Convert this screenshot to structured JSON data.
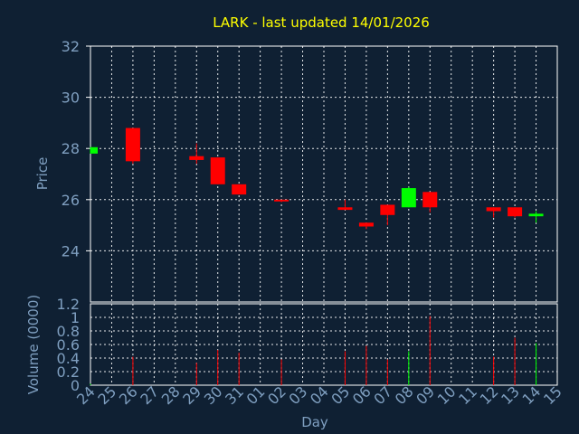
{
  "title": "LARK - last updated 14/01/2026",
  "colors": {
    "background": "#0f2033",
    "title": "#ffff00",
    "axis_text": "#7f9fc0",
    "grid": "#ffffff",
    "up": "#00ff00",
    "down": "#ff0000"
  },
  "chart_data": [
    {
      "type": "candlestick",
      "ylabel": "Price",
      "ylim": [
        22,
        32
      ],
      "yticks": [
        24,
        26,
        28,
        30,
        32
      ],
      "grid": true,
      "categories": [
        "24",
        "25",
        "26",
        "27",
        "28",
        "29",
        "30",
        "31",
        "01",
        "02",
        "03",
        "04",
        "05",
        "06",
        "07",
        "08",
        "09",
        "10",
        "11",
        "12",
        "13",
        "14",
        "15"
      ],
      "candles": [
        {
          "x": "24",
          "open": 27.8,
          "high": 28.05,
          "low": 27.8,
          "close": 28.05,
          "dir": "up"
        },
        {
          "x": "26",
          "open": 28.8,
          "high": 28.8,
          "low": 27.4,
          "close": 27.5,
          "dir": "down"
        },
        {
          "x": "29",
          "open": 27.7,
          "high": 28.2,
          "low": 27.4,
          "close": 27.55,
          "dir": "down"
        },
        {
          "x": "30",
          "open": 27.65,
          "high": 27.65,
          "low": 26.6,
          "close": 26.6,
          "dir": "down"
        },
        {
          "x": "31",
          "open": 26.6,
          "high": 26.6,
          "low": 26.2,
          "close": 26.2,
          "dir": "down"
        },
        {
          "x": "02",
          "open": 26.0,
          "high": 26.0,
          "low": 25.9,
          "close": 25.95,
          "dir": "down"
        },
        {
          "x": "05",
          "open": 25.7,
          "high": 26.0,
          "low": 25.6,
          "close": 25.6,
          "dir": "down"
        },
        {
          "x": "06",
          "open": 25.1,
          "high": 25.1,
          "low": 24.85,
          "close": 24.95,
          "dir": "down"
        },
        {
          "x": "07",
          "open": 25.8,
          "high": 25.8,
          "low": 25.0,
          "close": 25.4,
          "dir": "down"
        },
        {
          "x": "08",
          "open": 25.7,
          "high": 26.5,
          "low": 25.7,
          "close": 26.45,
          "dir": "up"
        },
        {
          "x": "09",
          "open": 26.3,
          "high": 26.3,
          "low": 25.5,
          "close": 25.7,
          "dir": "down"
        },
        {
          "x": "12",
          "open": 25.7,
          "high": 25.7,
          "low": 25.3,
          "close": 25.55,
          "dir": "down"
        },
        {
          "x": "13",
          "open": 25.7,
          "high": 25.7,
          "low": 25.3,
          "close": 25.35,
          "dir": "down"
        },
        {
          "x": "14",
          "open": 25.35,
          "high": 25.55,
          "low": 25.1,
          "close": 25.45,
          "dir": "up"
        }
      ]
    },
    {
      "type": "bar",
      "ylabel": "Volume (0000)",
      "xlabel": "Day",
      "ylim": [
        0,
        1.2
      ],
      "yticks": [
        "0",
        "0.2",
        "0.4",
        "0.6",
        "0.8",
        "1",
        "1.2"
      ],
      "grid": true,
      "categories": [
        "24",
        "25",
        "26",
        "27",
        "28",
        "29",
        "30",
        "31",
        "01",
        "02",
        "03",
        "04",
        "05",
        "06",
        "07",
        "08",
        "09",
        "10",
        "11",
        "12",
        "13",
        "14",
        "15"
      ],
      "bars": [
        {
          "x": "24",
          "value": 0.02,
          "dir": "up"
        },
        {
          "x": "26",
          "value": 0.42,
          "dir": "down"
        },
        {
          "x": "29",
          "value": 0.33,
          "dir": "down"
        },
        {
          "x": "30",
          "value": 0.52,
          "dir": "down"
        },
        {
          "x": "31",
          "value": 0.48,
          "dir": "down"
        },
        {
          "x": "02",
          "value": 0.38,
          "dir": "down"
        },
        {
          "x": "05",
          "value": 0.5,
          "dir": "down"
        },
        {
          "x": "06",
          "value": 0.58,
          "dir": "down"
        },
        {
          "x": "07",
          "value": 0.38,
          "dir": "down"
        },
        {
          "x": "08",
          "value": 0.5,
          "dir": "up"
        },
        {
          "x": "09",
          "value": 1.02,
          "dir": "down"
        },
        {
          "x": "12",
          "value": 0.42,
          "dir": "down"
        },
        {
          "x": "13",
          "value": 0.7,
          "dir": "down"
        },
        {
          "x": "14",
          "value": 0.62,
          "dir": "up"
        }
      ]
    }
  ]
}
